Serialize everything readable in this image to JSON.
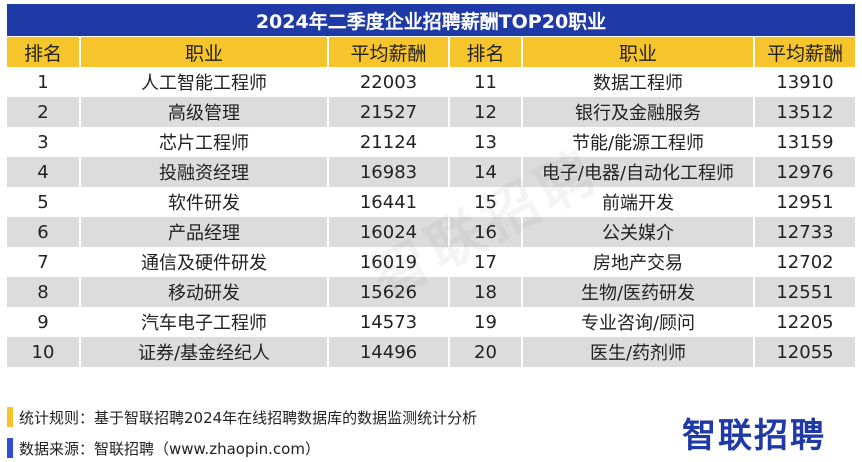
{
  "title": "2024年二季度企业招聘薪酬TOP20职业",
  "headers": {
    "rank": "排名",
    "job": "职业",
    "salary": "平均薪酬"
  },
  "rows": [
    {
      "l_rank": "1",
      "l_job": "人工智能工程师",
      "l_salary": "22003",
      "r_rank": "11",
      "r_job": "数据工程师",
      "r_salary": "13910"
    },
    {
      "l_rank": "2",
      "l_job": "高级管理",
      "l_salary": "21527",
      "r_rank": "12",
      "r_job": "银行及金融服务",
      "r_salary": "13512"
    },
    {
      "l_rank": "3",
      "l_job": "芯片工程师",
      "l_salary": "21124",
      "r_rank": "13",
      "r_job": "节能/能源工程师",
      "r_salary": "13159"
    },
    {
      "l_rank": "4",
      "l_job": "投融资经理",
      "l_salary": "16983",
      "r_rank": "14",
      "r_job": "电子/电器/自动化工程师",
      "r_salary": "12976"
    },
    {
      "l_rank": "5",
      "l_job": "软件研发",
      "l_salary": "16441",
      "r_rank": "15",
      "r_job": "前端开发",
      "r_salary": "12951"
    },
    {
      "l_rank": "6",
      "l_job": "产品经理",
      "l_salary": "16024",
      "r_rank": "16",
      "r_job": "公关媒介",
      "r_salary": "12733"
    },
    {
      "l_rank": "7",
      "l_job": "通信及硬件研发",
      "l_salary": "16019",
      "r_rank": "17",
      "r_job": "房地产交易",
      "r_salary": "12702"
    },
    {
      "l_rank": "8",
      "l_job": "移动研发",
      "l_salary": "15626",
      "r_rank": "18",
      "r_job": "生物/医药研发",
      "r_salary": "12551"
    },
    {
      "l_rank": "9",
      "l_job": "汽车电子工程师",
      "l_salary": "14573",
      "r_rank": "19",
      "r_job": "专业咨询/顾问",
      "r_salary": "12205"
    },
    {
      "l_rank": "10",
      "l_job": "证券/基金经纪人",
      "l_salary": "14496",
      "r_rank": "20",
      "r_job": "医生/药剂师",
      "r_salary": "12055"
    }
  ],
  "watermark": "智联招聘",
  "footer": {
    "rule": "统计规则：基于智联招聘2024年在线招聘数据库的数据监测统计分析",
    "source": "数据来源：智联招聘（www.zhaopin.com）"
  },
  "logo": "智联招聘",
  "colors": {
    "title_bg": "#1f3aa6",
    "header_bg": "#f6c42b",
    "stripe": "#dcdcdc",
    "marker_rule": "#f6c42b",
    "marker_source": "#2b4fd6"
  }
}
